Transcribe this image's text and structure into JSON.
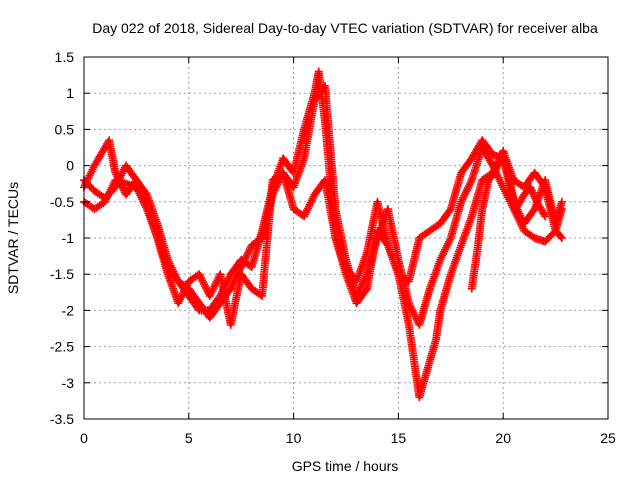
{
  "chart_data": {
    "type": "scatter",
    "title": "Day 022 of 2018, Sidereal Day-to-day VTEC variation (SDTVAR) for receiver alba",
    "xlabel": "GPS time / hours",
    "ylabel": "SDTVAR / TECUs",
    "xlim": [
      0,
      25
    ],
    "ylim": [
      -3.5,
      1.5
    ],
    "xticks": [
      "0",
      "5",
      "10",
      "15",
      "20",
      "25"
    ],
    "yticks": [
      "1.5",
      "1",
      "0.5",
      "0",
      "-0.5",
      "-1",
      "-1.5",
      "-2",
      "-2.5",
      "-3",
      "-3.5"
    ],
    "xtick_values": [
      0,
      5,
      10,
      15,
      20,
      25
    ],
    "ytick_values": [
      1.5,
      1,
      0.5,
      0,
      -0.5,
      -1,
      -1.5,
      -2,
      -2.5,
      -3,
      -3.5
    ],
    "grid": true,
    "marker": "+",
    "color": "#ff0000",
    "series": [
      {
        "x": [
          0.0,
          0.5,
          1.0,
          1.2,
          1.5,
          2.0,
          2.5,
          3.0,
          3.5,
          4.0,
          4.5,
          5.0,
          5.5,
          6.0,
          6.5,
          7.0,
          7.5,
          8.0,
          8.5,
          9.0,
          9.5,
          10.0,
          10.5,
          11.0,
          11.2,
          11.5,
          12.0,
          12.5,
          13.0,
          13.5,
          14.0,
          14.5,
          15.0,
          15.5,
          16.0,
          16.5,
          17.0,
          17.5,
          18.0,
          18.5,
          19.0,
          19.5,
          20.0,
          20.5,
          21.0,
          21.5,
          22.0,
          22.5,
          22.8
        ],
        "y": [
          -0.3,
          0.0,
          0.25,
          0.35,
          -0.1,
          -0.4,
          -0.2,
          -0.5,
          -1.0,
          -1.4,
          -1.6,
          -1.8,
          -2.0,
          -2.0,
          -1.8,
          -1.5,
          -1.3,
          -1.4,
          -0.9,
          -0.3,
          0.1,
          -0.1,
          0.5,
          1.0,
          1.3,
          0.6,
          -1.0,
          -1.4,
          -1.6,
          -1.2,
          -0.5,
          -1.1,
          -1.5,
          -1.6,
          -1.0,
          -0.9,
          -0.8,
          -0.6,
          -0.1,
          0.1,
          0.35,
          0.15,
          0.1,
          -0.5,
          -0.8,
          -0.6,
          -0.2,
          -0.8,
          -0.5
        ]
      },
      {
        "x": [
          0.0,
          0.5,
          1.0,
          1.5,
          2.0,
          2.5,
          3.0,
          3.5,
          4.0,
          4.5,
          5.0,
          5.5,
          6.0,
          6.5,
          7.0,
          7.5,
          8.0,
          8.5,
          9.0,
          9.5,
          10.0,
          10.5,
          11.0,
          11.5,
          12.0,
          12.5,
          13.0,
          13.5,
          14.0,
          14.5,
          15.0,
          15.5,
          16.0,
          16.5,
          17.0,
          17.5,
          18.0,
          18.5,
          19.0,
          19.5,
          20.0,
          20.5,
          21.0,
          21.5,
          22.0,
          22.5,
          22.8
        ],
        "y": [
          -0.2,
          -0.35,
          -0.45,
          -0.3,
          0.0,
          -0.2,
          -0.4,
          -0.8,
          -1.3,
          -1.6,
          -1.7,
          -1.9,
          -2.1,
          -1.9,
          -1.7,
          -1.4,
          -1.1,
          -1.0,
          -0.4,
          -0.1,
          -0.3,
          0.1,
          0.9,
          1.1,
          -0.6,
          -1.3,
          -1.8,
          -1.5,
          -1.0,
          -0.6,
          -1.3,
          -1.9,
          -2.2,
          -1.7,
          -1.3,
          -1.0,
          -0.5,
          -0.2,
          0.25,
          0.0,
          -0.3,
          -0.6,
          -0.9,
          -1.0,
          -1.05,
          -0.9,
          -1.0
        ]
      },
      {
        "x": [
          0.0,
          0.5,
          1.0,
          1.5,
          2.0,
          2.5,
          3.0,
          3.5,
          4.0,
          4.5,
          5.0,
          5.5,
          6.0,
          6.5,
          7.0,
          7.5,
          8.0,
          8.5,
          9.0,
          9.5,
          10.0,
          10.5,
          11.0,
          11.5,
          12.0,
          12.5,
          13.0,
          13.5,
          14.0,
          14.5,
          15.0,
          15.5,
          15.8,
          16.0,
          16.3,
          16.8,
          17.0,
          17.5,
          18.0,
          18.5,
          19.0,
          19.5,
          20.0,
          20.5,
          21.0,
          21.5,
          22.0,
          22.5,
          22.8
        ],
        "y": [
          -0.5,
          -0.6,
          -0.5,
          -0.2,
          -0.25,
          -0.3,
          -0.6,
          -1.0,
          -1.5,
          -1.9,
          -1.6,
          -1.5,
          -1.8,
          -1.5,
          -2.2,
          -1.5,
          -1.7,
          -1.8,
          -0.2,
          -0.1,
          -0.6,
          -0.7,
          -0.4,
          -0.2,
          -1.0,
          -1.5,
          -1.9,
          -1.7,
          -0.9,
          -1.1,
          -1.5,
          -2.2,
          -2.8,
          -3.2,
          -2.9,
          -2.4,
          -2.0,
          -1.5,
          -1.1,
          -0.7,
          -0.2,
          -0.1,
          0.2,
          -0.2,
          -0.3,
          -0.1,
          -0.3,
          -0.9,
          -0.6
        ]
      },
      {
        "x": [
          18.5,
          18.8,
          19.0,
          19.3,
          19.6,
          20.0,
          20.3,
          20.6,
          21.0,
          21.3,
          21.6,
          22.0
        ],
        "y": [
          -1.7,
          -1.1,
          -0.6,
          -0.2,
          -0.1,
          0.2,
          -0.2,
          -0.6,
          -0.4,
          -0.3,
          -0.5,
          -0.7
        ]
      }
    ]
  }
}
